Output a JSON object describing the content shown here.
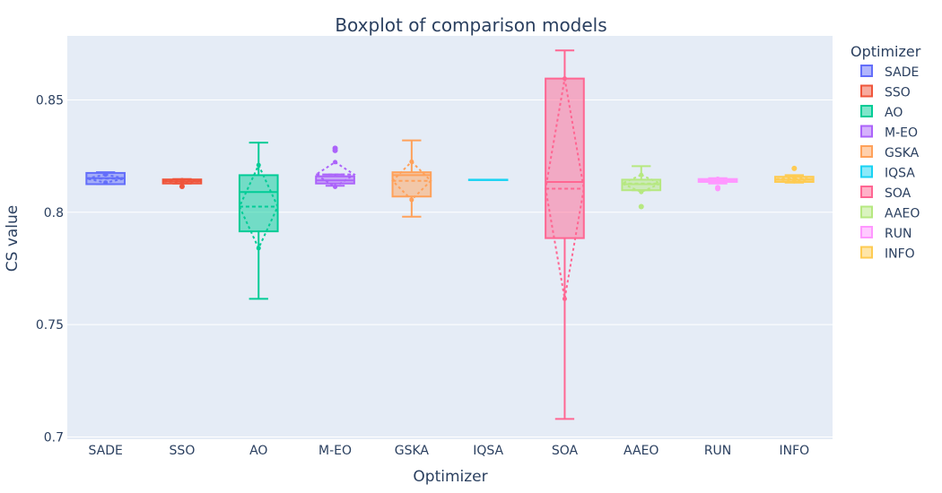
{
  "chart_data": {
    "type": "box",
    "title": "Boxplot of comparison models",
    "xlabel": "Optimizer",
    "ylabel": "CS value",
    "legend_title": "Optimizer",
    "legend_position": "right",
    "grid": true,
    "ylim": [
      0.699,
      0.8785
    ],
    "yticks": [
      0.7,
      0.75,
      0.8,
      0.85
    ],
    "ytick_labels": [
      "0.7",
      "0.75",
      "0.8",
      "0.85"
    ],
    "series": [
      {
        "name": "SADE",
        "color": "#636efa",
        "min": 0.8125,
        "q1": 0.8125,
        "median": 0.8152,
        "q3": 0.8175,
        "max": 0.8178,
        "mean": 0.815,
        "sd": 0.0018,
        "outliers": []
      },
      {
        "name": "SSO",
        "color": "#EF553B",
        "min": 0.8128,
        "q1": 0.8128,
        "median": 0.8138,
        "q3": 0.8146,
        "max": 0.8148,
        "mean": 0.8138,
        "sd": 0.0005,
        "outliers": [
          0.8115
        ]
      },
      {
        "name": "AO",
        "color": "#00cc96",
        "min": 0.7615,
        "q1": 0.7915,
        "median": 0.809,
        "q3": 0.8165,
        "max": 0.831,
        "mean": 0.8025,
        "sd": 0.0185,
        "outliers": []
      },
      {
        "name": "M-EO",
        "color": "#ab63fa",
        "min": 0.8118,
        "q1": 0.8128,
        "median": 0.8142,
        "q3": 0.816,
        "max": 0.8168,
        "mean": 0.8168,
        "sd": 0.0055,
        "outliers": [
          0.8275,
          0.8285
        ]
      },
      {
        "name": "GSKA",
        "color": "#FFA15A",
        "min": 0.798,
        "q1": 0.807,
        "median": 0.8165,
        "q3": 0.8178,
        "max": 0.832,
        "mean": 0.814,
        "sd": 0.0085,
        "outliers": []
      },
      {
        "name": "IQSA",
        "color": "#19d3f3",
        "min": 0.8145,
        "q1": 0.8145,
        "median": 0.8145,
        "q3": 0.8145,
        "max": 0.8145,
        "mean": 0.8145,
        "sd": 0,
        "outliers": []
      },
      {
        "name": "SOA",
        "color": "#FF6692",
        "min": 0.708,
        "q1": 0.7885,
        "median": 0.8135,
        "q3": 0.8595,
        "max": 0.872,
        "mean": 0.8105,
        "sd": 0.049,
        "outliers": []
      },
      {
        "name": "AAEO",
        "color": "#B6E880",
        "min": 0.8098,
        "q1": 0.8098,
        "median": 0.8125,
        "q3": 0.8145,
        "max": 0.8205,
        "mean": 0.8128,
        "sd": 0.0038,
        "outliers": [
          0.8025
        ]
      },
      {
        "name": "RUN",
        "color": "#FF97FF",
        "min": 0.8128,
        "q1": 0.8135,
        "median": 0.8142,
        "q3": 0.8148,
        "max": 0.8152,
        "mean": 0.8142,
        "sd": 0.0007,
        "outliers": [
          0.8105,
          0.811
        ]
      },
      {
        "name": "INFO",
        "color": "#FECB52",
        "min": 0.8132,
        "q1": 0.8135,
        "median": 0.8145,
        "q3": 0.8158,
        "max": 0.8165,
        "mean": 0.8147,
        "sd": 0.0009,
        "outliers": [
          0.8195
        ]
      }
    ]
  }
}
